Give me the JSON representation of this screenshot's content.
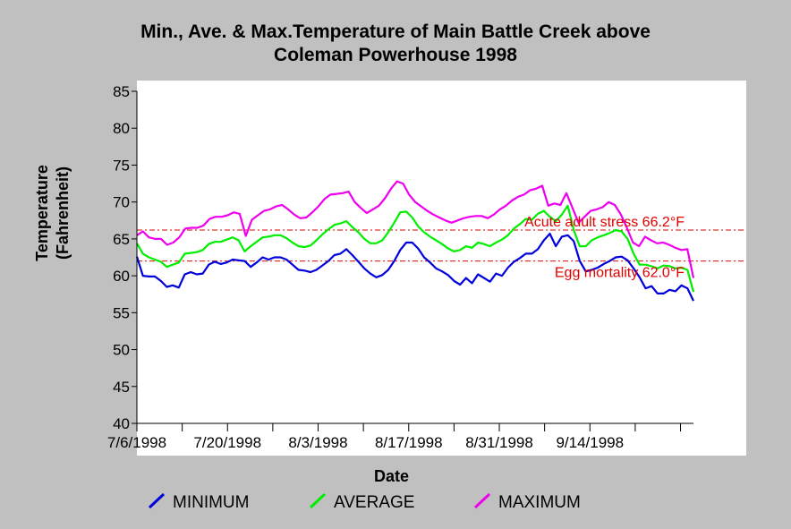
{
  "chart_data": {
    "type": "line",
    "title_line1": "Min., Ave. & Max.Temperature of Main Battle Creek above",
    "title_line2": "Coleman Powerhouse 1998",
    "xlabel": "Date",
    "ylabel_line1": "Temperature",
    "ylabel_line2": "(Fahrenheit)",
    "ylim": [
      40,
      85
    ],
    "yticks": [
      40,
      45,
      50,
      55,
      60,
      65,
      70,
      75,
      80,
      85
    ],
    "x_start": "7/6/1998",
    "x_end": "9/30/1998",
    "xtick_labels": [
      "7/6/1998",
      "7/20/1998",
      "8/3/1998",
      "8/17/1998",
      "8/31/1998",
      "9/14/1998"
    ],
    "grid": false,
    "legend_position": "bottom",
    "thresholds": [
      {
        "label": "Acute adult stress 66.2°F",
        "value": 66.2,
        "color": "#e00000"
      },
      {
        "label": "Egg mortality 62.0°F",
        "value": 62.0,
        "color": "#e00000"
      }
    ],
    "series": [
      {
        "name": "MINIMUM",
        "color": "#0000dd",
        "values": [
          62.6,
          60.0,
          59.9,
          59.9,
          59.3,
          58.5,
          58.7,
          58.4,
          60.2,
          60.5,
          60.2,
          60.3,
          61.5,
          61.9,
          61.6,
          61.8,
          62.2,
          62.1,
          62.0,
          61.2,
          61.8,
          62.5,
          62.2,
          62.5,
          62.5,
          62.2,
          61.5,
          60.8,
          60.7,
          60.5,
          60.8,
          61.4,
          62.0,
          62.8,
          63.0,
          63.6,
          62.8,
          61.9,
          61.0,
          60.3,
          59.8,
          60.1,
          60.8,
          62.0,
          63.5,
          64.5,
          64.5,
          63.7,
          62.5,
          61.8,
          61.0,
          60.6,
          60.1,
          59.3,
          58.8,
          59.7,
          59.0,
          60.2,
          59.7,
          59.2,
          60.3,
          60.0,
          61.1,
          61.9,
          62.4,
          63.0,
          63.0,
          63.6,
          64.8,
          65.7,
          64.0,
          65.3,
          65.5,
          64.7,
          62.0,
          60.6,
          60.8,
          61.1,
          61.6,
          62.0,
          62.5,
          62.6,
          62.1,
          61.0,
          59.8,
          58.3,
          58.6,
          57.6,
          57.6,
          58.1,
          57.9,
          58.7,
          58.3,
          56.6
        ]
      },
      {
        "name": "AVERAGE",
        "color": "#00ee00",
        "values": [
          64.4,
          63.0,
          62.5,
          62.2,
          61.9,
          61.2,
          61.5,
          61.8,
          63.0,
          63.1,
          63.2,
          63.5,
          64.3,
          64.6,
          64.6,
          64.9,
          65.2,
          64.8,
          63.3,
          64.0,
          64.6,
          65.2,
          65.3,
          65.5,
          65.5,
          65.1,
          64.5,
          64.0,
          63.9,
          64.1,
          64.8,
          65.6,
          66.3,
          66.9,
          67.1,
          67.4,
          66.6,
          65.9,
          65.0,
          64.4,
          64.4,
          64.8,
          65.9,
          67.2,
          68.6,
          68.7,
          67.9,
          66.7,
          65.9,
          65.3,
          64.8,
          64.3,
          63.7,
          63.3,
          63.5,
          64.0,
          63.8,
          64.5,
          64.3,
          64.0,
          64.5,
          64.9,
          65.5,
          66.4,
          67.0,
          67.7,
          67.6,
          68.4,
          68.8,
          68.0,
          67.4,
          68.3,
          69.5,
          66.2,
          64.0,
          64.0,
          64.8,
          65.2,
          65.5,
          65.8,
          66.2,
          66.0,
          65.0,
          63.0,
          61.5,
          61.5,
          61.3,
          61.0,
          61.4,
          61.3,
          61.0,
          61.1,
          60.8,
          57.8
        ]
      },
      {
        "name": "MAXIMUM",
        "color": "#ee00ee",
        "values": [
          65.5,
          66.0,
          65.2,
          65.0,
          65.0,
          64.2,
          64.5,
          65.2,
          66.4,
          66.5,
          66.5,
          66.8,
          67.7,
          68.0,
          68.0,
          68.2,
          68.6,
          68.4,
          65.4,
          67.6,
          68.2,
          68.8,
          69.0,
          69.4,
          69.6,
          69.0,
          68.3,
          67.8,
          67.9,
          68.6,
          69.4,
          70.4,
          71.0,
          71.1,
          71.2,
          71.4,
          70.0,
          69.2,
          68.5,
          69.0,
          69.5,
          70.5,
          71.8,
          72.8,
          72.5,
          71.0,
          70.0,
          69.4,
          68.8,
          68.3,
          67.9,
          67.5,
          67.2,
          67.5,
          67.8,
          68.0,
          68.1,
          68.1,
          67.8,
          68.3,
          69.0,
          69.5,
          70.2,
          70.7,
          71.0,
          71.6,
          71.8,
          72.2,
          69.5,
          69.8,
          69.6,
          71.2,
          69.2,
          67.2,
          68.0,
          68.8,
          69.0,
          69.3,
          70.0,
          69.6,
          68.3,
          66.5,
          64.5,
          64.0,
          65.3,
          64.8,
          64.4,
          64.5,
          64.2,
          63.8,
          63.5,
          63.6,
          59.7
        ]
      }
    ]
  }
}
